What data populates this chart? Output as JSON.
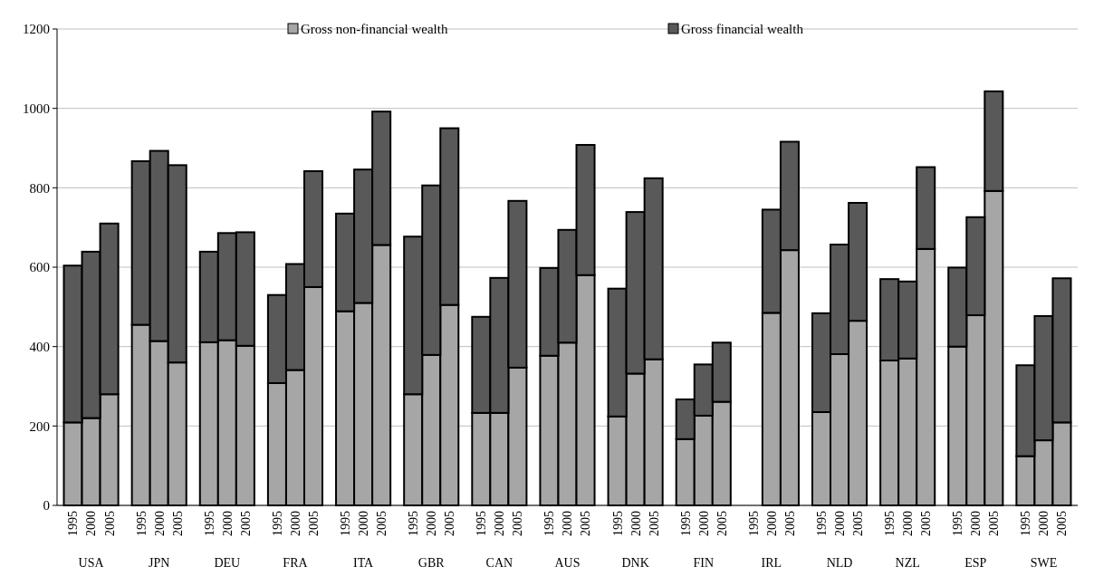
{
  "chart_data": {
    "type": "bar",
    "stacked": true,
    "categories": [
      "1995",
      "2000",
      "2005",
      "1995",
      "2000",
      "2005",
      "1995",
      "2000",
      "2005",
      "1995",
      "2000",
      "2005",
      "1995",
      "2000",
      "2005",
      "1995",
      "2000",
      "2005",
      "1995",
      "2000",
      "2005",
      "1995",
      "2000",
      "2005",
      "1995",
      "2000",
      "2005",
      "1995",
      "2000",
      "2005",
      "1995",
      "2000",
      "2005",
      "1995",
      "2000",
      "2005",
      "1995",
      "2000",
      "2005",
      "1995",
      "2000",
      "2005",
      "1995",
      "2000",
      "2005"
    ],
    "annotations": [
      "USA",
      "JPN",
      "DEU",
      "FRA",
      "ITA",
      "GBR",
      "CAN",
      "AUS",
      "DNK",
      "FIN",
      "IRL",
      "NLD",
      "NZL",
      "ESP",
      "SWE"
    ],
    "series": [
      {
        "name": "Gross non-financial wealth",
        "color": "#a6a6a6",
        "values": [
          209,
          220,
          280,
          455,
          414,
          360,
          411,
          416,
          402,
          308,
          341,
          550,
          489,
          510,
          656,
          280,
          379,
          505,
          233,
          233,
          347,
          377,
          410,
          580,
          224,
          332,
          368,
          167,
          226,
          261,
          null,
          485,
          643,
          235,
          381,
          465,
          365,
          370,
          646,
          400,
          479,
          792,
          124,
          164,
          209
        ]
      },
      {
        "name": "Gross financial wealth",
        "color": "#595959",
        "values": [
          395,
          419,
          430,
          412,
          479,
          497,
          228,
          270,
          286,
          222,
          267,
          292,
          246,
          336,
          336,
          397,
          427,
          445,
          242,
          340,
          420,
          221,
          284,
          328,
          322,
          407,
          456,
          100,
          129,
          149,
          null,
          260,
          273,
          249,
          276,
          297,
          205,
          194,
          206,
          199,
          247,
          251,
          229,
          313,
          363
        ]
      }
    ],
    "ylim": [
      0,
      1200
    ],
    "yticks": [
      0,
      200,
      400,
      600,
      800,
      1000,
      1200
    ],
    "grid": "y",
    "legend": "top"
  }
}
